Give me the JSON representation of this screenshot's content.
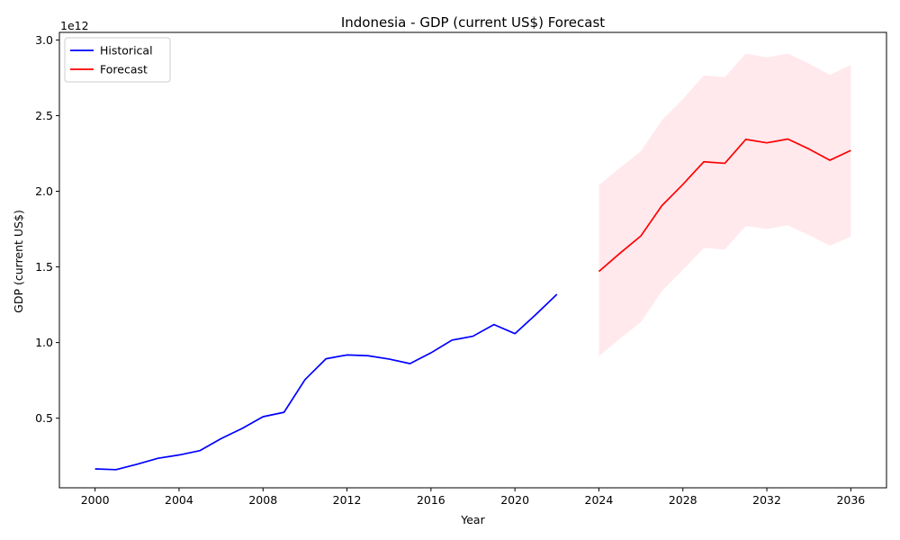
{
  "chart_data": {
    "type": "line",
    "title": "Indonesia - GDP (current US$) Forecast",
    "xlabel": "Year",
    "ylabel": "GDP (current US$)",
    "y_offset_label": "1e12",
    "y_scale": 1000000000000.0,
    "xlim": [
      1998.3,
      2037.7
    ],
    "ylim": [
      0.04,
      3.05
    ],
    "x_ticks": [
      2000,
      2004,
      2008,
      2012,
      2016,
      2020,
      2024,
      2028,
      2032,
      2036
    ],
    "y_ticks": [
      0.5,
      1.0,
      1.5,
      2.0,
      2.5,
      3.0
    ],
    "y_tick_labels": [
      "0.5",
      "1.0",
      "1.5",
      "2.0",
      "2.5",
      "3.0"
    ],
    "grid": false,
    "legend_position": "top-left",
    "series": [
      {
        "name": "Historical",
        "color": "#0000ff",
        "points": [
          [
            2000,
            0.165
          ],
          [
            2001,
            0.16
          ],
          [
            2002,
            0.196
          ],
          [
            2003,
            0.235
          ],
          [
            2004,
            0.257
          ],
          [
            2005,
            0.286
          ],
          [
            2006,
            0.365
          ],
          [
            2007,
            0.432
          ],
          [
            2008,
            0.51
          ],
          [
            2009,
            0.539
          ],
          [
            2010,
            0.755
          ],
          [
            2011,
            0.893
          ],
          [
            2012,
            0.918
          ],
          [
            2013,
            0.913
          ],
          [
            2014,
            0.891
          ],
          [
            2015,
            0.861
          ],
          [
            2016,
            0.932
          ],
          [
            2017,
            1.016
          ],
          [
            2018,
            1.042
          ],
          [
            2019,
            1.119
          ],
          [
            2020,
            1.059
          ],
          [
            2021,
            1.186
          ],
          [
            2022,
            1.319
          ]
        ]
      },
      {
        "name": "Forecast",
        "color": "#ff0000",
        "points": [
          [
            2024,
            1.47
          ],
          [
            2025,
            1.59
          ],
          [
            2026,
            1.705
          ],
          [
            2027,
            1.905
          ],
          [
            2028,
            2.045
          ],
          [
            2029,
            2.195
          ],
          [
            2030,
            2.185
          ],
          [
            2031,
            2.343
          ],
          [
            2032,
            2.32
          ],
          [
            2033,
            2.345
          ],
          [
            2034,
            2.28
          ],
          [
            2035,
            2.205
          ],
          [
            2036,
            2.27
          ]
        ],
        "band": {
          "color": "#ffc0cb",
          "opacity": 0.35,
          "lower": [
            0.91,
            1.025,
            1.135,
            1.34,
            1.48,
            1.625,
            1.615,
            1.77,
            1.75,
            1.775,
            1.71,
            1.64,
            1.7
          ],
          "upper": [
            2.04,
            2.155,
            2.265,
            2.47,
            2.61,
            2.765,
            2.755,
            2.91,
            2.885,
            2.91,
            2.845,
            2.77,
            2.835
          ]
        }
      }
    ]
  }
}
